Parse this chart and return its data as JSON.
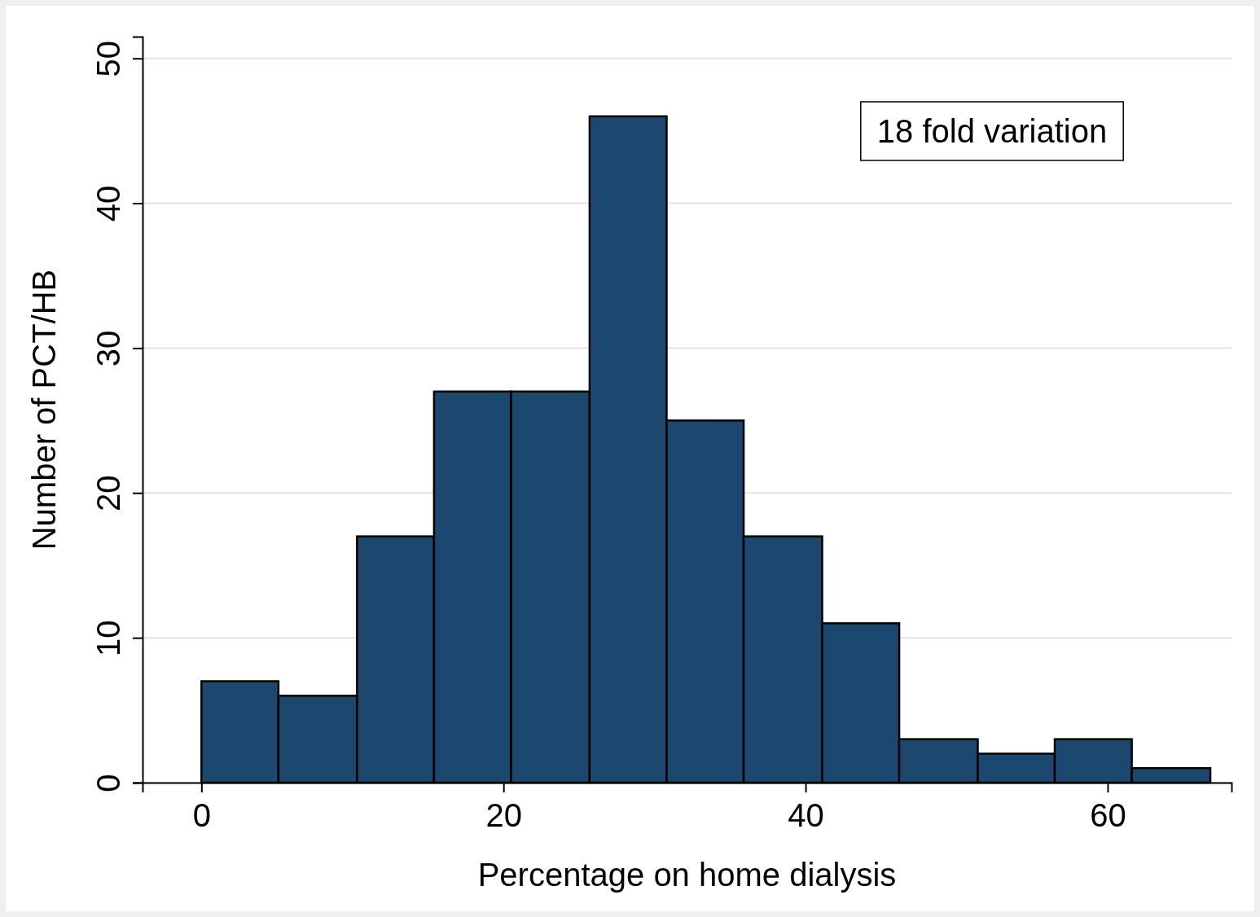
{
  "chart_data": {
    "type": "histogram",
    "xlabel": "Percentage on home dialysis",
    "ylabel": "Number of PCT/HB",
    "bins": [
      0,
      5.1,
      10.3,
      15.4,
      20.5,
      25.7,
      30.8,
      35.9,
      41.1,
      46.2,
      51.4,
      56.5,
      61.6,
      66.8
    ],
    "values": [
      7,
      6,
      17,
      27,
      27,
      46,
      25,
      17,
      11,
      3,
      2,
      3,
      1
    ],
    "color": "#1c4870",
    "xlim": [
      -3.9,
      68.2
    ],
    "xticks": [
      0,
      20,
      40,
      60
    ],
    "ylim": [
      0,
      51.5
    ],
    "yticks": [
      0,
      10,
      20,
      30,
      40,
      50
    ],
    "grid": "y",
    "annotations": [
      "18 fold variation"
    ]
  }
}
